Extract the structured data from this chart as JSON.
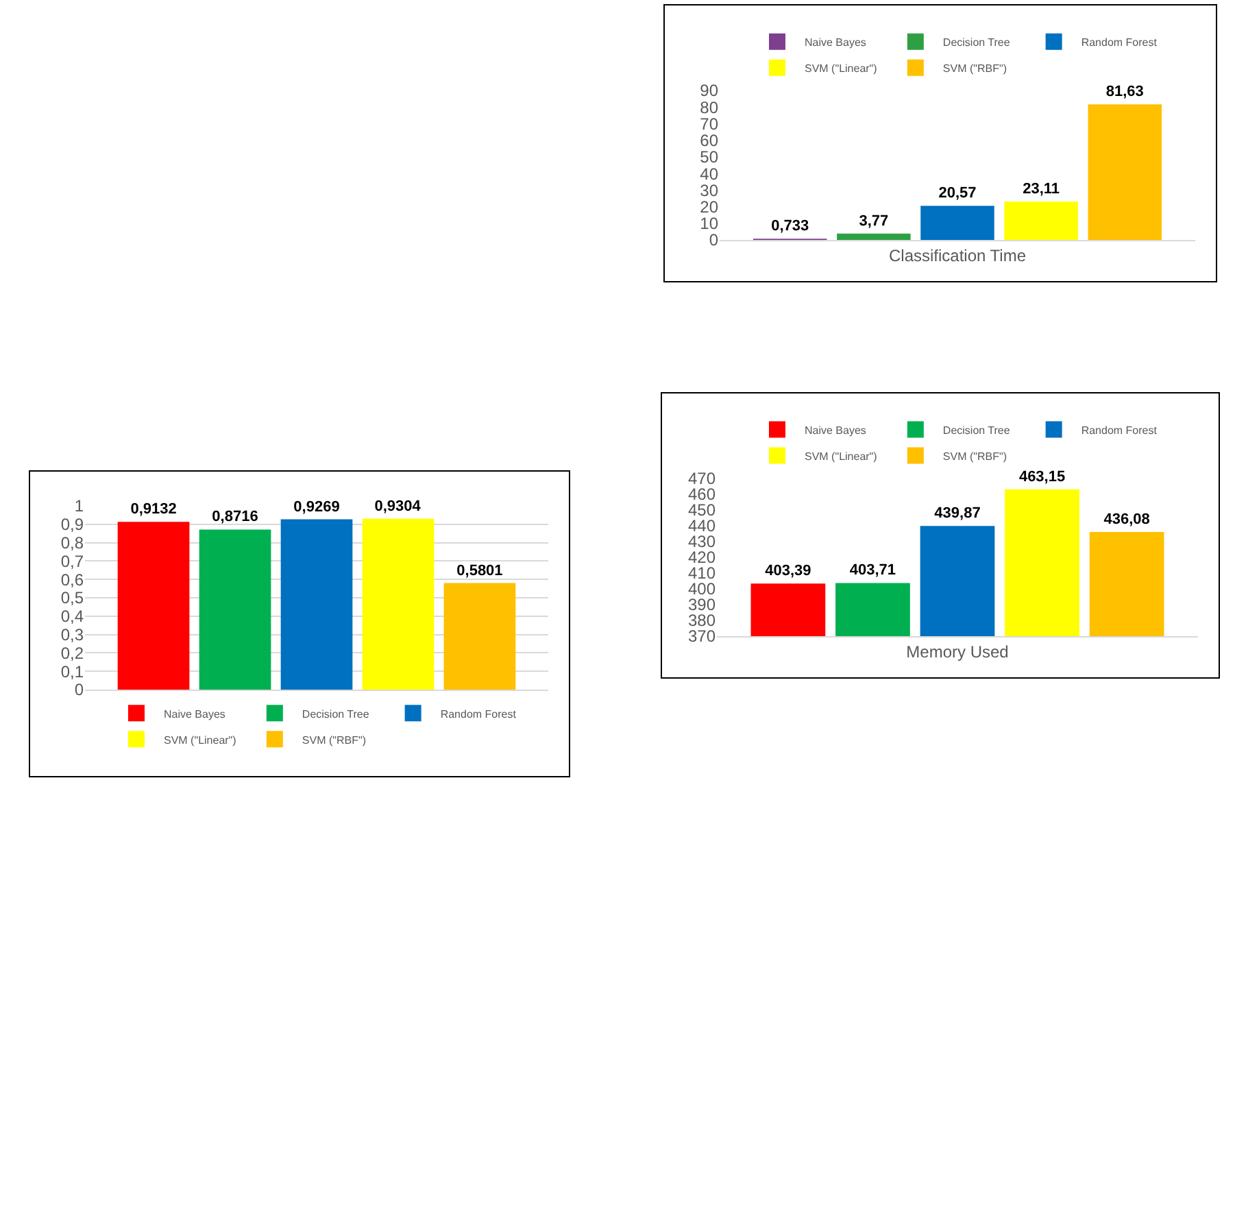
{
  "chart_data": [
    {
      "type": "bar",
      "categories": [
        "Classification Time"
      ],
      "legend": "top",
      "grid": false,
      "ylim": [
        0,
        90
      ],
      "yticks": [
        0,
        10,
        20,
        30,
        40,
        50,
        60,
        70,
        80,
        90
      ],
      "series": [
        {
          "name": "Naive Bayes",
          "color": "#7f3f8f",
          "values": [
            0.733
          ],
          "value_labels": [
            "0,733"
          ]
        },
        {
          "name": "Decision Tree",
          "color": "#2ea043",
          "values": [
            3.77
          ],
          "value_labels": [
            "3,77"
          ]
        },
        {
          "name": "Random Forest",
          "color": "#0070c0",
          "values": [
            20.57
          ],
          "value_labels": [
            "20,57"
          ]
        },
        {
          "name": "SVM (\"Linear\")",
          "color": "#ffff00",
          "values": [
            23.11
          ],
          "value_labels": [
            "23,11"
          ]
        },
        {
          "name": "SVM (\"RBF\")",
          "color": "#ffc000",
          "values": [
            81.63
          ],
          "value_labels": [
            "81,63"
          ]
        }
      ]
    },
    {
      "type": "bar",
      "categories": [
        "Memory Used"
      ],
      "legend": "top",
      "grid": false,
      "ylim": [
        370,
        470
      ],
      "yticks": [
        370,
        380,
        390,
        400,
        410,
        420,
        430,
        440,
        450,
        460,
        470
      ],
      "series": [
        {
          "name": "Naive Bayes",
          "color": "#ff0000",
          "values": [
            403.39
          ],
          "value_labels": [
            "403,39"
          ]
        },
        {
          "name": "Decision Tree",
          "color": "#00b050",
          "values": [
            403.71
          ],
          "value_labels": [
            "403,71"
          ]
        },
        {
          "name": "Random Forest",
          "color": "#0070c0",
          "values": [
            439.87
          ],
          "value_labels": [
            "439,87"
          ]
        },
        {
          "name": "SVM (\"Linear\")",
          "color": "#ffff00",
          "values": [
            463.15
          ],
          "value_labels": [
            "463,15"
          ]
        },
        {
          "name": "SVM (\"RBF\")",
          "color": "#ffc000",
          "values": [
            436.08
          ],
          "value_labels": [
            "436,08"
          ]
        }
      ]
    },
    {
      "type": "bar",
      "categories": [
        null
      ],
      "legend": "bottom",
      "grid": "y",
      "ylim": [
        0,
        1
      ],
      "yticks": [
        0,
        {
          "value": 0.1,
          "label": "0,1"
        },
        {
          "value": 0.2,
          "label": "0,2"
        },
        {
          "value": 0.3,
          "label": "0,3"
        },
        {
          "value": 0.4,
          "label": "0,4"
        },
        {
          "value": 0.5,
          "label": "0,5"
        },
        {
          "value": 0.6,
          "label": "0,6"
        },
        {
          "value": 0.7,
          "label": "0,7"
        },
        {
          "value": 0.8,
          "label": "0,8"
        },
        {
          "value": 0.9,
          "label": "0,9"
        },
        1
      ],
      "series": [
        {
          "name": "Naive Bayes",
          "color": "#ff0000",
          "values": [
            0.9132
          ],
          "value_labels": [
            "0,9132"
          ]
        },
        {
          "name": "Decision Tree",
          "color": "#00b050",
          "values": [
            0.8716
          ],
          "value_labels": [
            "0,8716"
          ]
        },
        {
          "name": "Random Forest",
          "color": "#0070c0",
          "values": [
            0.9269
          ],
          "value_labels": [
            "0,9269"
          ]
        },
        {
          "name": "SVM (\"Linear\")",
          "color": "#ffff00",
          "values": [
            0.9304
          ],
          "value_labels": [
            "0,9304"
          ]
        },
        {
          "name": "SVM (\"RBF\")",
          "color": "#ffc000",
          "values": [
            0.5801
          ],
          "value_labels": [
            "0,5801"
          ]
        }
      ]
    }
  ]
}
